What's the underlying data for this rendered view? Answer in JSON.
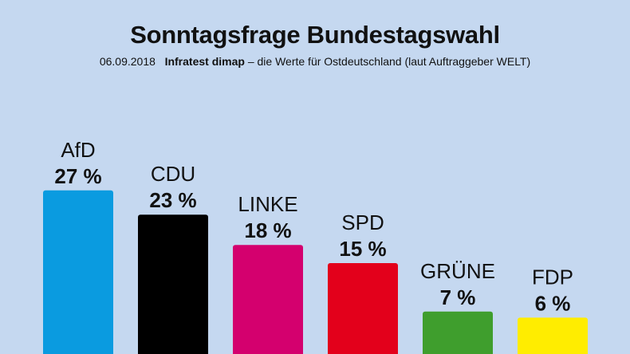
{
  "header": {
    "title": "Sonntagsfrage Bundestagswahl",
    "date": "06.09.2018",
    "source": "Infratest dimap",
    "note": "– die Werte für Ostdeutschland (laut Auftraggeber WELT)"
  },
  "chart_data": {
    "type": "bar",
    "categories": [
      "AfD",
      "CDU",
      "LINKE",
      "SPD",
      "GRÜNE",
      "FDP"
    ],
    "values": [
      27,
      23,
      18,
      15,
      7,
      6
    ],
    "value_labels": [
      "27 %",
      "23 %",
      "18 %",
      "15 %",
      "7 %",
      "6 %"
    ],
    "colors": [
      "#0a9be0",
      "#000000",
      "#d4006e",
      "#e3001b",
      "#3f9e2d",
      "#ffed00"
    ],
    "grid": false,
    "legend": "none"
  }
}
